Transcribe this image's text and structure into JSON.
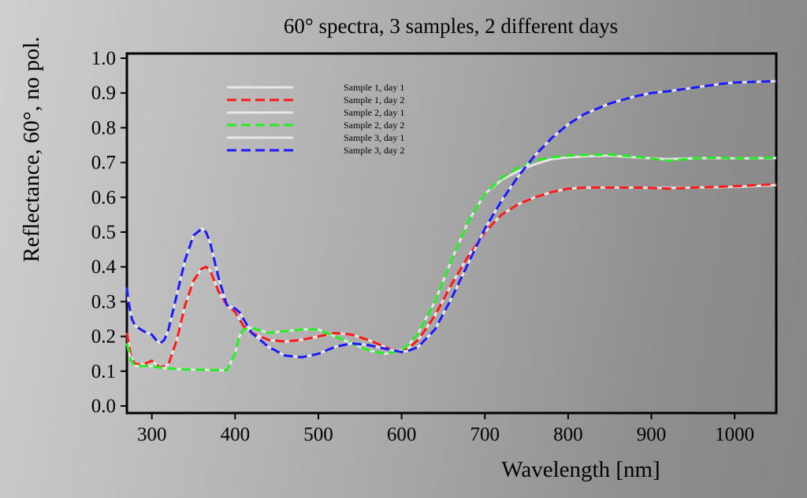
{
  "chart_data": {
    "type": "line",
    "title": "60° spectra, 3 samples, 2 different days",
    "xlabel": "Wavelength [nm]",
    "ylabel": "Reflectance, 60°, no pol.",
    "xlim": [
      270,
      1050
    ],
    "ylim": [
      0.0,
      1.0
    ],
    "xticks": [
      300,
      400,
      500,
      600,
      700,
      800,
      900,
      1000
    ],
    "yticks": [
      "0.0",
      "0.1",
      "0.2",
      "0.3",
      "0.4",
      "0.5",
      "0.6",
      "0.7",
      "0.8",
      "0.9",
      "1.0"
    ],
    "legend_position": "top-left",
    "grid": false,
    "series": [
      {
        "name": "Sample 1, day 1",
        "color": "#e6e6e6",
        "style": "solid",
        "x": [
          270,
          275,
          280,
          290,
          300,
          305,
          310,
          320,
          330,
          340,
          350,
          360,
          365,
          370,
          380,
          390,
          400,
          410,
          420,
          440,
          460,
          480,
          500,
          520,
          540,
          560,
          580,
          590,
          600,
          610,
          620,
          640,
          660,
          680,
          700,
          720,
          740,
          760,
          780,
          800,
          820,
          850,
          880,
          900,
          920,
          950,
          980,
          1000,
          1020,
          1050
        ],
        "y": [
          0.21,
          0.14,
          0.12,
          0.12,
          0.13,
          0.12,
          0.11,
          0.12,
          0.19,
          0.29,
          0.36,
          0.395,
          0.4,
          0.39,
          0.33,
          0.29,
          0.27,
          0.23,
          0.21,
          0.19,
          0.185,
          0.19,
          0.2,
          0.21,
          0.205,
          0.19,
          0.17,
          0.16,
          0.155,
          0.17,
          0.19,
          0.26,
          0.35,
          0.43,
          0.5,
          0.55,
          0.58,
          0.6,
          0.615,
          0.625,
          0.628,
          0.628,
          0.628,
          0.627,
          0.627,
          0.628,
          0.629,
          0.63,
          0.632,
          0.635
        ]
      },
      {
        "name": "Sample 1, day 2",
        "color": "#ff1a1a",
        "style": "dashed",
        "x": [
          270,
          275,
          280,
          290,
          300,
          305,
          310,
          320,
          330,
          340,
          350,
          360,
          365,
          370,
          380,
          390,
          400,
          410,
          420,
          440,
          460,
          480,
          500,
          520,
          540,
          560,
          580,
          590,
          600,
          610,
          620,
          640,
          660,
          680,
          700,
          720,
          740,
          760,
          780,
          800,
          820,
          850,
          880,
          900,
          920,
          950,
          980,
          1000,
          1020,
          1050
        ],
        "y": [
          0.21,
          0.14,
          0.12,
          0.12,
          0.13,
          0.12,
          0.11,
          0.12,
          0.19,
          0.29,
          0.36,
          0.395,
          0.4,
          0.39,
          0.33,
          0.29,
          0.27,
          0.23,
          0.21,
          0.19,
          0.185,
          0.19,
          0.2,
          0.21,
          0.205,
          0.19,
          0.17,
          0.16,
          0.155,
          0.17,
          0.19,
          0.26,
          0.35,
          0.43,
          0.5,
          0.55,
          0.58,
          0.6,
          0.615,
          0.625,
          0.628,
          0.628,
          0.628,
          0.627,
          0.625,
          0.628,
          0.63,
          0.632,
          0.634,
          0.638
        ]
      },
      {
        "name": "Sample 2, day 1",
        "color": "#e6e6e6",
        "style": "solid",
        "x": [
          270,
          275,
          280,
          290,
          300,
          310,
          320,
          340,
          360,
          380,
          390,
          400,
          405,
          410,
          420,
          440,
          460,
          480,
          500,
          520,
          540,
          560,
          580,
          590,
          600,
          610,
          620,
          640,
          660,
          680,
          700,
          720,
          740,
          760,
          780,
          800,
          820,
          850,
          880,
          900,
          920,
          950,
          980,
          1000,
          1020,
          1050
        ],
        "y": [
          0.18,
          0.13,
          0.115,
          0.115,
          0.115,
          0.11,
          0.108,
          0.105,
          0.104,
          0.103,
          0.102,
          0.15,
          0.2,
          0.22,
          0.225,
          0.21,
          0.215,
          0.22,
          0.22,
          0.2,
          0.18,
          0.16,
          0.15,
          0.155,
          0.16,
          0.18,
          0.21,
          0.3,
          0.42,
          0.53,
          0.61,
          0.65,
          0.675,
          0.695,
          0.71,
          0.715,
          0.718,
          0.72,
          0.715,
          0.712,
          0.71,
          0.712,
          0.713,
          0.712,
          0.712,
          0.713
        ]
      },
      {
        "name": "Sample 2, day 2",
        "color": "#22ee22",
        "style": "dashed",
        "x": [
          270,
          275,
          280,
          290,
          300,
          310,
          320,
          340,
          360,
          380,
          390,
          400,
          405,
          410,
          420,
          440,
          460,
          480,
          500,
          520,
          540,
          560,
          580,
          590,
          600,
          610,
          620,
          640,
          660,
          680,
          700,
          720,
          740,
          760,
          780,
          800,
          820,
          850,
          880,
          900,
          920,
          950,
          980,
          1000,
          1020,
          1050
        ],
        "y": [
          0.18,
          0.13,
          0.115,
          0.115,
          0.115,
          0.11,
          0.108,
          0.105,
          0.104,
          0.103,
          0.102,
          0.15,
          0.2,
          0.22,
          0.225,
          0.21,
          0.215,
          0.22,
          0.22,
          0.2,
          0.18,
          0.16,
          0.15,
          0.155,
          0.16,
          0.18,
          0.21,
          0.3,
          0.42,
          0.53,
          0.61,
          0.655,
          0.685,
          0.705,
          0.715,
          0.72,
          0.722,
          0.723,
          0.717,
          0.712,
          0.705,
          0.712,
          0.714,
          0.712,
          0.712,
          0.714
        ]
      },
      {
        "name": "Sample 3, day 1",
        "color": "#e6e6e6",
        "style": "solid",
        "x": [
          270,
          272,
          276,
          280,
          290,
          300,
          305,
          310,
          315,
          320,
          330,
          340,
          350,
          360,
          365,
          370,
          380,
          390,
          400,
          405,
          410,
          420,
          440,
          460,
          480,
          500,
          520,
          540,
          560,
          580,
          590,
          600,
          610,
          620,
          640,
          660,
          680,
          700,
          720,
          740,
          760,
          780,
          800,
          820,
          850,
          880,
          900,
          920,
          950,
          980,
          1000,
          1020,
          1050
        ],
        "y": [
          0.34,
          0.3,
          0.25,
          0.23,
          0.215,
          0.205,
          0.19,
          0.18,
          0.19,
          0.22,
          0.32,
          0.42,
          0.49,
          0.51,
          0.5,
          0.47,
          0.37,
          0.29,
          0.28,
          0.27,
          0.25,
          0.21,
          0.17,
          0.145,
          0.14,
          0.15,
          0.17,
          0.18,
          0.175,
          0.165,
          0.16,
          0.155,
          0.16,
          0.17,
          0.22,
          0.31,
          0.41,
          0.51,
          0.59,
          0.66,
          0.72,
          0.77,
          0.81,
          0.84,
          0.87,
          0.89,
          0.9,
          0.905,
          0.915,
          0.925,
          0.93,
          0.932,
          0.934
        ]
      },
      {
        "name": "Sample 3, day 2",
        "color": "#1a1aff",
        "style": "dashed",
        "x": [
          270,
          272,
          276,
          280,
          290,
          300,
          305,
          310,
          315,
          320,
          330,
          340,
          350,
          360,
          365,
          370,
          380,
          390,
          400,
          405,
          410,
          420,
          440,
          460,
          480,
          500,
          520,
          540,
          560,
          580,
          590,
          600,
          610,
          620,
          640,
          660,
          680,
          700,
          720,
          740,
          760,
          780,
          800,
          820,
          850,
          880,
          900,
          920,
          950,
          980,
          1000,
          1020,
          1050
        ],
        "y": [
          0.34,
          0.3,
          0.25,
          0.23,
          0.215,
          0.205,
          0.19,
          0.18,
          0.19,
          0.22,
          0.32,
          0.42,
          0.49,
          0.51,
          0.5,
          0.47,
          0.37,
          0.29,
          0.28,
          0.27,
          0.25,
          0.21,
          0.17,
          0.145,
          0.14,
          0.15,
          0.17,
          0.18,
          0.175,
          0.165,
          0.16,
          0.155,
          0.16,
          0.17,
          0.22,
          0.31,
          0.41,
          0.51,
          0.59,
          0.66,
          0.72,
          0.77,
          0.81,
          0.84,
          0.87,
          0.89,
          0.9,
          0.905,
          0.915,
          0.925,
          0.93,
          0.932,
          0.934
        ]
      }
    ]
  }
}
